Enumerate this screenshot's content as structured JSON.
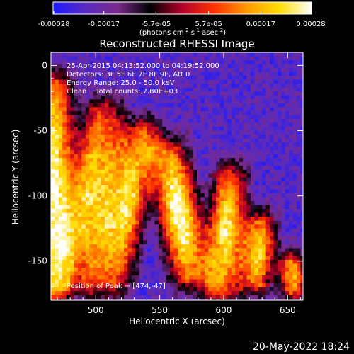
{
  "chart_data": {
    "type": "heatmap",
    "title": "Reconstructed RHESSI Image",
    "xlabel": "Heliocentric X (arcsec)",
    "ylabel": "Heliocentric Y (arcsec)",
    "xlim": [
      465,
      662
    ],
    "ylim": [
      -180,
      10
    ],
    "x_ticks": [
      500,
      550,
      600,
      650
    ],
    "y_ticks": [
      0,
      -50,
      -100,
      -150
    ],
    "colorbar": {
      "tick_labels": [
        "-0.00028",
        "-0.00017",
        "-5.7e-05",
        "5.7e-05",
        "0.00017",
        "0.00028"
      ],
      "tick_values": [
        -0.00028,
        -0.00017,
        -5.7e-05,
        5.7e-05,
        0.00017,
        0.00028
      ],
      "range": [
        -0.00028,
        0.00028
      ],
      "unit_label": "(photons cm-2 s-1 asec-2)",
      "colors": [
        "#1a1aff",
        "#5a2abf",
        "#7a2a8a",
        "#000000",
        "#b3002a",
        "#ff3300",
        "#ff9900",
        "#ffdd00",
        "#ffffff"
      ]
    },
    "annotations": [
      "25-Apr-2015 04:13:52.000 to 04:19:52.000",
      "Detectors: 3F 5F 6F 7F 8F 9F, Att 0",
      "Energy Range: 25.0 - 50.0 keV",
      "Clean    Total counts: 7.80E+03"
    ],
    "peak_label": "Position of Peak = [474,-47]",
    "peak_position": [
      474,
      -47
    ],
    "ridges": [
      {
        "x_top": 468,
        "x_bottom": 462,
        "y_top": -5,
        "y_bottom": -180,
        "peak": 0.00028,
        "width": 10
      },
      {
        "x_top": 505,
        "x_bottom": 480,
        "y_top": -25,
        "y_bottom": -175,
        "peak": 0.00022,
        "width": 12
      },
      {
        "x_top": 533,
        "x_bottom": 508,
        "y_top": -40,
        "y_bottom": -175,
        "peak": 0.00024,
        "width": 12
      },
      {
        "x_top": 553,
        "x_bottom": 575,
        "y_top": -55,
        "y_bottom": -170,
        "peak": 0.00027,
        "width": 12
      },
      {
        "x_top": 604,
        "x_bottom": 597,
        "y_top": -75,
        "y_bottom": -180,
        "peak": 0.00024,
        "width": 10
      },
      {
        "x_top": 628,
        "x_bottom": 623,
        "y_top": -110,
        "y_bottom": -175,
        "peak": 0.00022,
        "width": 9
      },
      {
        "x_top": 651,
        "x_bottom": 653,
        "y_top": -140,
        "y_bottom": -180,
        "peak": 0.00017,
        "width": 8
      }
    ]
  },
  "footer": {
    "timestamp": "20-May-2022 18:24"
  }
}
